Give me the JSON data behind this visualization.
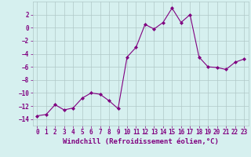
{
  "x": [
    0,
    1,
    2,
    3,
    4,
    5,
    6,
    7,
    8,
    9,
    10,
    11,
    12,
    13,
    14,
    15,
    16,
    17,
    18,
    19,
    20,
    21,
    22,
    23
  ],
  "y": [
    -13.5,
    -13.3,
    -11.8,
    -12.6,
    -12.3,
    -10.8,
    -10.0,
    -10.2,
    -11.2,
    -12.4,
    -4.5,
    -3.0,
    0.5,
    -0.2,
    0.8,
    3.0,
    0.8,
    2.0,
    -4.5,
    -6.0,
    -6.1,
    -6.4,
    -5.3,
    -4.8
  ],
  "line_color": "#800080",
  "marker": "D",
  "marker_size": 2.0,
  "bg_color": "#d6f0ef",
  "grid_color": "#b0c8c8",
  "xlabel": "Windchill (Refroidissement éolien,°C)",
  "xlim": [
    -0.5,
    23.5
  ],
  "ylim": [
    -15,
    4
  ],
  "yticks": [
    -14,
    -12,
    -10,
    -8,
    -6,
    -4,
    -2,
    0,
    2
  ],
  "xticks": [
    0,
    1,
    2,
    3,
    4,
    5,
    6,
    7,
    8,
    9,
    10,
    11,
    12,
    13,
    14,
    15,
    16,
    17,
    18,
    19,
    20,
    21,
    22,
    23
  ],
  "tick_color": "#800080",
  "label_color": "#800080",
  "xlabel_fontsize": 6.5,
  "tick_fontsize": 5.5
}
